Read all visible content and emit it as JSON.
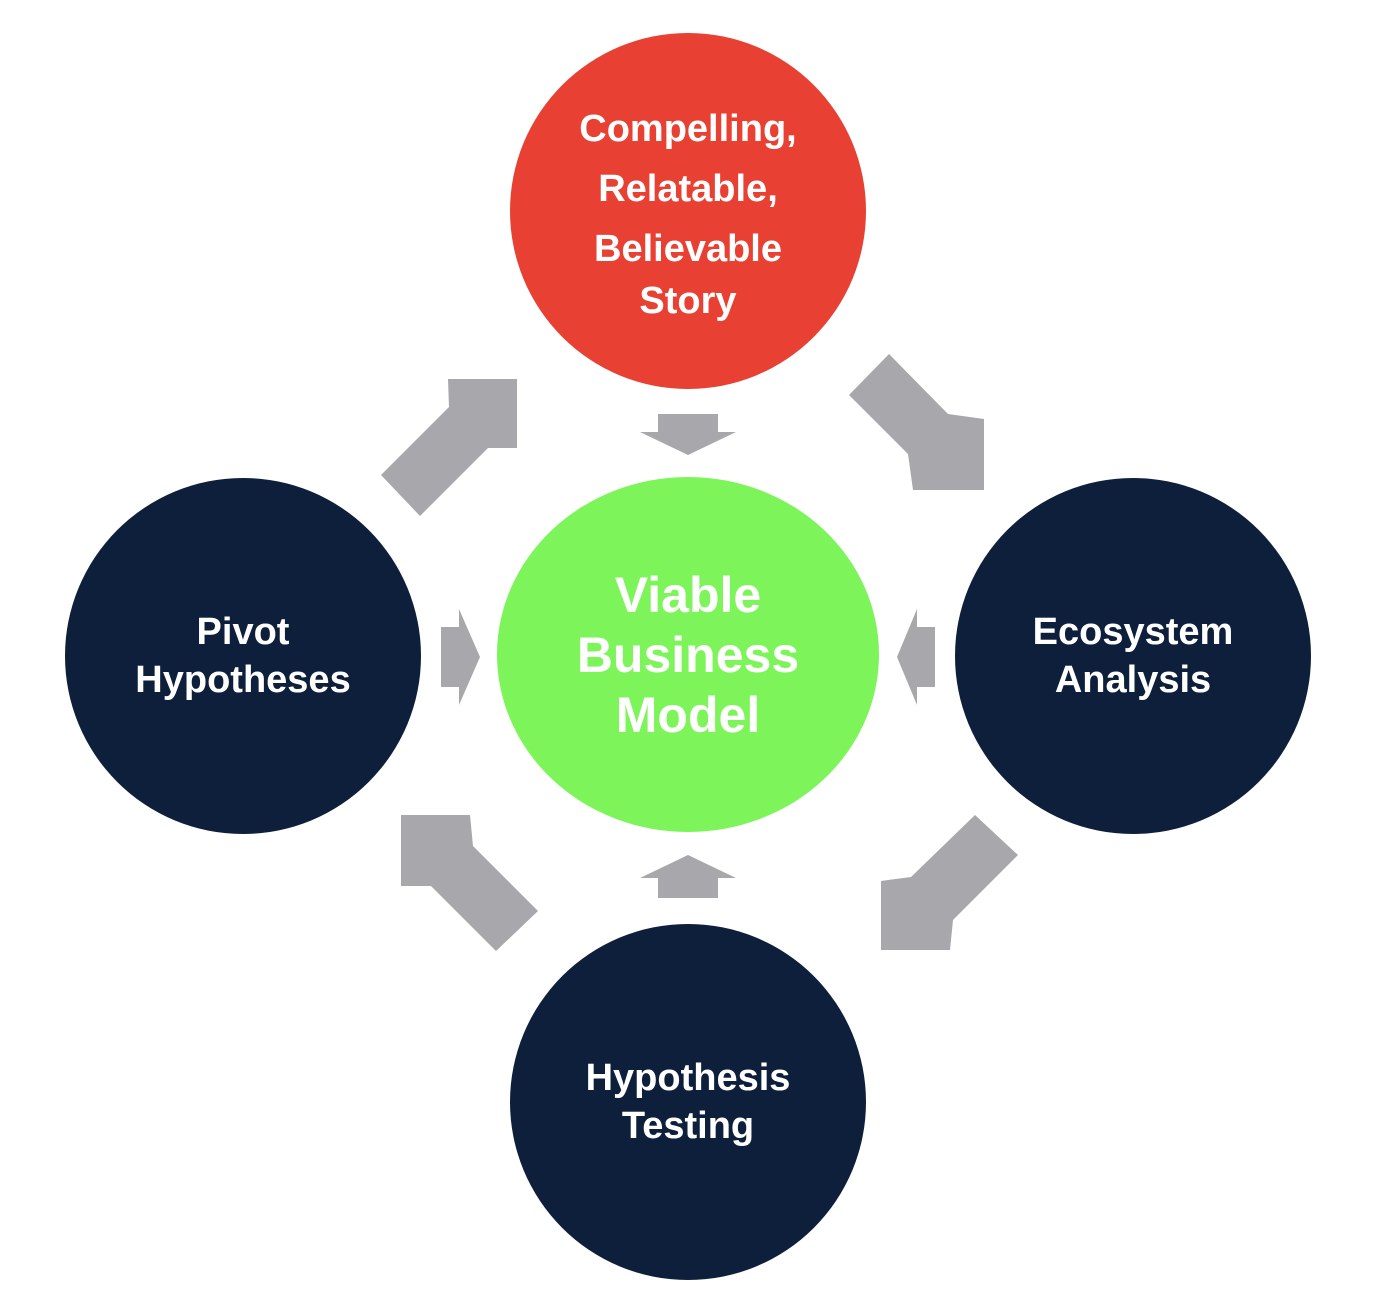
{
  "colors": {
    "story": "#e84133",
    "core": "#7df55a",
    "step": "#0e1f3c",
    "arrow": "#a8a8ac",
    "text": "#ffffff"
  },
  "nodes": {
    "story": {
      "lines": [
        "Compelling,",
        "Relatable,",
        "Believable",
        "Story"
      ]
    },
    "core": {
      "lines": [
        "Viable",
        "Business",
        "Model"
      ]
    },
    "ecosystem": {
      "lines": [
        "Ecosystem",
        "Analysis"
      ]
    },
    "testing": {
      "lines": [
        "Hypothesis",
        "Testing"
      ]
    },
    "pivot": {
      "lines": [
        "Pivot",
        "Hypotheses"
      ]
    }
  }
}
